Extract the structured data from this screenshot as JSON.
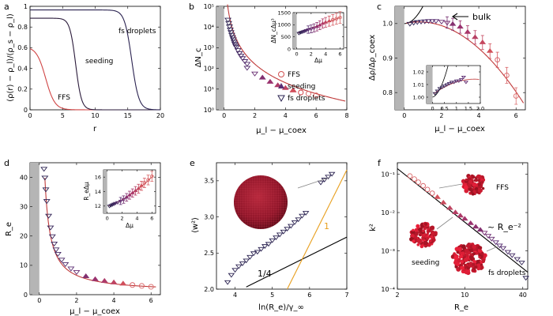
{
  "chart_data": [
    {
      "id": "a",
      "type": "line",
      "panel_label": "a",
      "xlabel": "r",
      "ylabel": "(ρ(r) − ρ_l)/(ρ_s − ρ_l)",
      "xlim": [
        0,
        20
      ],
      "ylim": [
        0,
        1
      ],
      "xticks": [
        0,
        5,
        10,
        15,
        20
      ],
      "yticks": [
        0,
        0.2,
        0.4,
        0.6,
        0.8,
        1
      ],
      "xtick_labels": [
        "0",
        "5",
        "10",
        "15",
        "20"
      ],
      "ytick_labels": [
        "0",
        "0.2",
        "0.4",
        "0.6",
        "0.8",
        "1"
      ],
      "series": [
        {
          "name": "FFS",
          "color": "#d04545",
          "plateau": 0.61,
          "R": 2.4,
          "w": 0.7
        },
        {
          "name": "seeding",
          "color": "#2a1a3a",
          "plateau": 0.885,
          "R": 7.0,
          "w": 0.45
        },
        {
          "name": "fs droplets",
          "color": "#2a2250",
          "plateau": 0.965,
          "R": 15.6,
          "w": 0.55
        }
      ],
      "annotations": [
        "FFS",
        "seeding",
        "fs droplets"
      ]
    },
    {
      "id": "b",
      "type": "scatter",
      "panel_label": "b",
      "xlabel": "μ_l − μ_coex",
      "ylabel": "ΔN_c",
      "xlim": [
        -0.5,
        8
      ],
      "ylim_log10": [
        0,
        5
      ],
      "xticks": [
        0,
        2,
        4,
        6,
        8
      ],
      "xtick_labels": [
        "0",
        "2",
        "4",
        "6",
        "8"
      ],
      "yticks_log10": [
        0,
        1,
        2,
        3,
        4,
        5
      ],
      "ytick_labels": [
        "10⁰",
        "10¹",
        "10²",
        "10³",
        "10⁴",
        "10⁵"
      ],
      "legend": [
        {
          "label": "FFS",
          "marker": "circle-open"
        },
        {
          "label": "seeding",
          "marker": "triangle-up-filled"
        },
        {
          "label": "fs droplets",
          "marker": "triangle-down-open"
        }
      ],
      "series": [
        {
          "name": "fs droplets",
          "x": [
            0.25,
            0.3,
            0.35,
            0.4,
            0.45,
            0.5,
            0.55,
            0.6,
            0.65,
            0.7,
            0.75,
            0.8,
            0.9,
            1.0,
            1.1,
            1.2,
            1.35,
            1.5
          ],
          "y": [
            23000,
            16000,
            11000,
            7800,
            5800,
            4300,
            3300,
            2600,
            2000,
            1600,
            1300,
            1100,
            780,
            560,
            420,
            320,
            230,
            170
          ]
        },
        {
          "name": "seeding",
          "x": [
            1.5,
            2.0,
            2.5,
            3.0,
            3.5,
            4.0,
            4.5,
            5.0
          ],
          "y": [
            110,
            58,
            35,
            22,
            15,
            11,
            8.5,
            6.8
          ]
        },
        {
          "name": "FFS",
          "x": [
            4.5,
            5.0,
            5.5,
            6.0
          ],
          "y": [
            8.5,
            7.0,
            6.0,
            5.0
          ]
        }
      ],
      "inset": {
        "xlabel": "Δμ",
        "ylabel": "ΔN_cΔμ³",
        "xlim": [
          -0.5,
          6.5
        ],
        "ylim": [
          0,
          1500
        ],
        "xticks": [
          0,
          2,
          4,
          6
        ],
        "xtick_labels": [
          "0",
          "2",
          "4",
          "6"
        ],
        "yticks": [
          0,
          500,
          1000,
          1500
        ],
        "ytick_labels": [
          "0",
          "500",
          "1000",
          "1500"
        ],
        "x": [
          0.3,
          0.5,
          0.7,
          0.9,
          1.1,
          1.3,
          1.6,
          2.0,
          2.4,
          2.8,
          3.2,
          3.6,
          4.0,
          4.5,
          5.0,
          5.5,
          6.0
        ],
        "y": [
          650,
          680,
          700,
          720,
          740,
          770,
          800,
          830,
          870,
          920,
          980,
          1050,
          1100,
          1150,
          1200,
          1250,
          1300
        ]
      }
    },
    {
      "id": "c",
      "type": "scatter",
      "panel_label": "c",
      "xlabel": "μ_l − μ_coex",
      "ylabel": "Δρ/Δρ_coex",
      "xlim": [
        -0.5,
        6.5
      ],
      "ylim": [
        0.75,
        1.05
      ],
      "xticks": [
        0,
        2,
        4,
        6
      ],
      "xtick_labels": [
        "0",
        "2",
        "4",
        "6"
      ],
      "yticks": [
        0.8,
        0.9,
        1.0
      ],
      "ytick_labels": [
        "0.8",
        "0.9",
        "1.0"
      ],
      "annotation": "bulk",
      "x": [
        0.3,
        0.5,
        0.7,
        0.9,
        1.1,
        1.3,
        1.5,
        1.7,
        2.0,
        2.3,
        2.6,
        3.0,
        3.4,
        3.8,
        4.2,
        4.6,
        5.0,
        5.5,
        6.0
      ],
      "y": [
        1.0,
        1.003,
        1.005,
        1.006,
        1.007,
        1.008,
        1.008,
        1.008,
        1.006,
        1.003,
        0.998,
        0.99,
        0.975,
        0.96,
        0.945,
        0.92,
        0.895,
        0.85,
        0.79
      ],
      "inset": {
        "xlim": [
          -0.25,
          2.0
        ],
        "ylim": [
          0.995,
          1.025
        ],
        "xticks": [
          0,
          0.5,
          1,
          1.5,
          2
        ],
        "xtick_labels": [
          "0",
          "0.5",
          "1",
          "1.5",
          "2.0"
        ],
        "yticks": [
          1.0,
          1.01,
          1.02
        ],
        "ytick_labels": [
          "1.00",
          "1.01",
          "1.02"
        ],
        "x": [
          0.1,
          0.2,
          0.3,
          0.4,
          0.5,
          0.6,
          0.7,
          0.8,
          0.9,
          1.0,
          1.1,
          1.2,
          1.3,
          1.4
        ],
        "y": [
          1.003,
          1.005,
          1.007,
          1.008,
          1.009,
          1.01,
          1.011,
          1.012,
          1.012,
          1.013,
          1.013,
          1.014,
          1.016,
          1.012
        ]
      }
    },
    {
      "id": "d",
      "type": "scatter",
      "panel_label": "d",
      "xlabel": "μ_l − μ_coex",
      "ylabel": "R_e",
      "xlim": [
        -0.5,
        6.5
      ],
      "ylim": [
        0,
        45
      ],
      "xticks": [
        0,
        2,
        4,
        6
      ],
      "xtick_labels": [
        "0",
        "2",
        "4",
        "6"
      ],
      "yticks": [
        0,
        10,
        20,
        30,
        40
      ],
      "ytick_labels": [
        "0",
        "10",
        "20",
        "30",
        "40"
      ],
      "x": [
        0.25,
        0.3,
        0.35,
        0.4,
        0.5,
        0.6,
        0.7,
        0.8,
        0.9,
        1.0,
        1.2,
        1.4,
        1.7,
        2.0,
        2.5,
        3.0,
        3.5,
        4.0,
        4.5,
        5.0,
        5.5,
        6.0
      ],
      "y": [
        43,
        40,
        36,
        32,
        27,
        23,
        20,
        17.5,
        15.5,
        14,
        12,
        10.5,
        9,
        7.8,
        6.2,
        5.2,
        4.6,
        4.1,
        3.7,
        3.3,
        3.0,
        2.7
      ],
      "inset": {
        "xlabel": "Δμ",
        "ylabel": "R_eΔμ",
        "xlim": [
          -0.5,
          6.5
        ],
        "ylim": [
          11,
          17
        ],
        "xticks": [
          0,
          2,
          4,
          6
        ],
        "xtick_labels": [
          "0",
          "2",
          "4",
          "6"
        ],
        "yticks": [
          12,
          14,
          16
        ],
        "ytick_labels": [
          "12",
          "14",
          "16"
        ],
        "x": [
          0.3,
          0.5,
          0.7,
          0.9,
          1.1,
          1.4,
          1.8,
          2.2,
          2.6,
          3.0,
          3.4,
          3.8,
          4.2,
          4.6,
          5.0,
          5.5,
          6.0
        ],
        "y": [
          12.0,
          12.1,
          12.2,
          12.3,
          12.4,
          12.5,
          12.7,
          12.9,
          13.2,
          13.5,
          13.8,
          14.1,
          14.4,
          14.8,
          15.2,
          15.6,
          16.1
        ]
      }
    },
    {
      "id": "e",
      "type": "scatter",
      "panel_label": "e",
      "xlabel": "ln(R_e)/γ_∞",
      "ylabel": "⟨w²⟩",
      "xlim": [
        3.5,
        7
      ],
      "ylim": [
        2,
        3.75
      ],
      "xticks": [
        4,
        5,
        6,
        7
      ],
      "xtick_labels": [
        "4",
        "5",
        "6",
        "7"
      ],
      "yticks": [
        2.0,
        2.5,
        3.0,
        3.5
      ],
      "ytick_labels": [
        "2.0",
        "2.5",
        "3.0",
        "3.5"
      ],
      "x": [
        3.8,
        3.9,
        4.0,
        4.1,
        4.2,
        4.3,
        4.4,
        4.5,
        4.6,
        4.7,
        4.8,
        4.9,
        5.0,
        5.1,
        5.2,
        5.3,
        5.4,
        5.5,
        5.6,
        5.7,
        5.8,
        5.9,
        6.3,
        6.4,
        6.5,
        6.6
      ],
      "y": [
        2.1,
        2.2,
        2.27,
        2.32,
        2.36,
        2.4,
        2.45,
        2.5,
        2.52,
        2.56,
        2.6,
        2.63,
        2.68,
        2.72,
        2.76,
        2.8,
        2.84,
        2.88,
        2.93,
        2.97,
        3.02,
        3.06,
        3.48,
        3.52,
        3.56,
        3.6
      ],
      "slope_labels": [
        "1/4",
        "1"
      ]
    },
    {
      "id": "f",
      "type": "scatter",
      "panel_label": "f",
      "xlabel": "R_e",
      "ylabel": "k²",
      "xlim_log10": [
        0.301,
        1.653
      ],
      "ylim_log10": [
        -4,
        -0.7
      ],
      "xticks": [
        2,
        10,
        40
      ],
      "xtick_labels": [
        "2",
        "10",
        "40"
      ],
      "yticks_log10": [
        -4,
        -3,
        -2,
        -1
      ],
      "ytick_labels": [
        "10⁻⁴",
        "10⁻³",
        "10⁻²",
        "10⁻¹"
      ],
      "x": [
        2.7,
        3.0,
        3.3,
        3.7,
        4.1,
        4.6,
        5.2,
        6.0,
        7.0,
        8.0,
        9.0,
        10.0,
        11.5,
        13.0,
        14.5,
        16.0,
        17.5,
        19.0,
        21.0,
        23.0,
        25.0,
        28.0,
        31.0,
        35.0,
        39.0,
        43.0
      ],
      "y": [
        0.09,
        0.075,
        0.062,
        0.05,
        0.04,
        0.032,
        0.025,
        0.018,
        0.013,
        0.01,
        0.0082,
        0.0068,
        0.0052,
        0.0042,
        0.0035,
        0.003,
        0.0025,
        0.0021,
        0.0017,
        0.0014,
        0.0012,
        0.00095,
        0.00078,
        0.00062,
        0.0005,
        0.0002
      ],
      "annotations": [
        "FFS",
        "seeding",
        "fs droplets",
        "~ R_e⁻²"
      ]
    }
  ]
}
